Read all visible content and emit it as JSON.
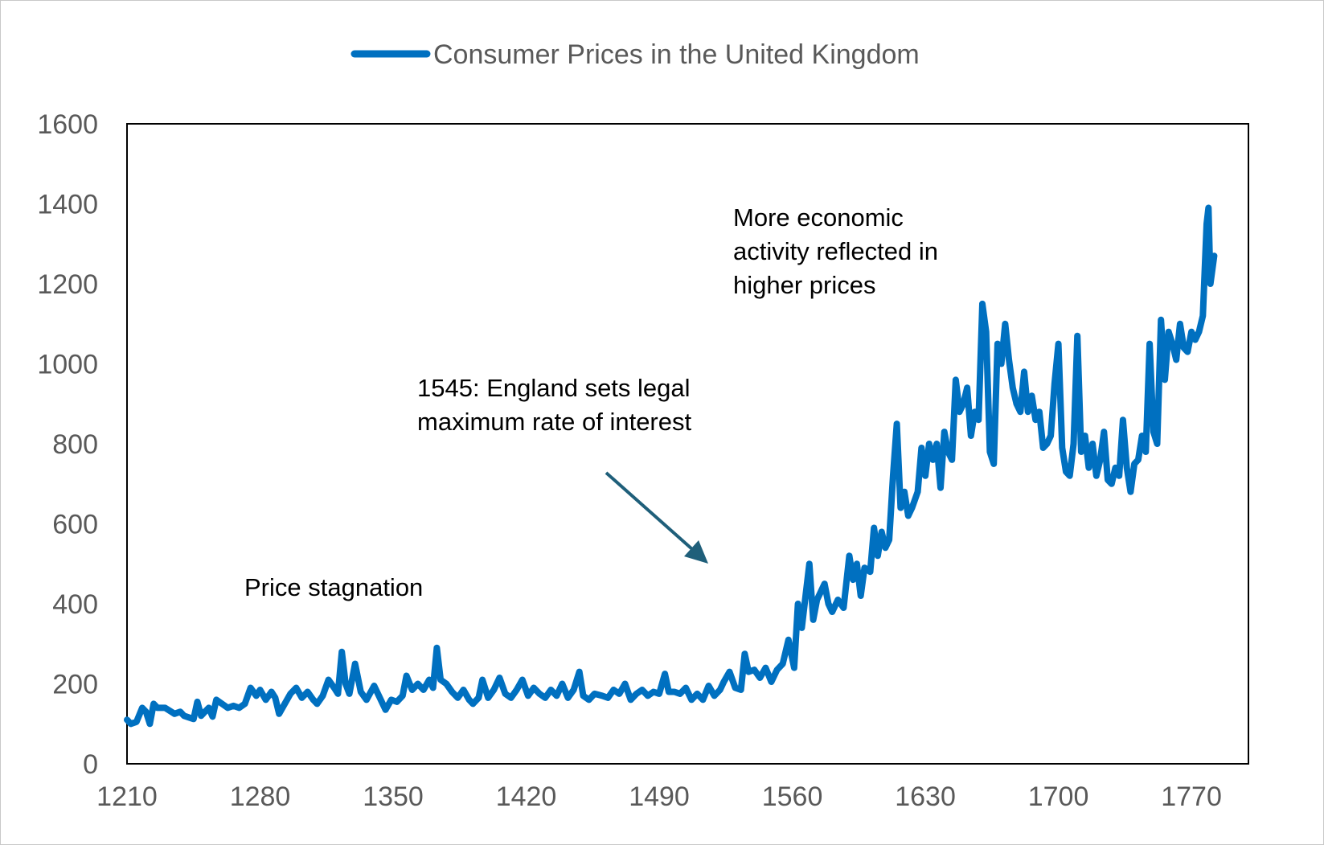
{
  "chart_data": {
    "type": "line",
    "title": "",
    "xlabel": "",
    "ylabel": "",
    "xlim": [
      1210,
      1800
    ],
    "ylim": [
      0,
      1600
    ],
    "x_ticks": [
      "1210",
      "1280",
      "1350",
      "1420",
      "1490",
      "1560",
      "1630",
      "1700",
      "1770"
    ],
    "y_ticks": [
      "0",
      "200",
      "400",
      "600",
      "800",
      "1000",
      "1200",
      "1400",
      "1600"
    ],
    "grid": false,
    "legend_position": "top-center",
    "series": [
      {
        "name": "Consumer Prices in the United Kingdom",
        "color": "#0070c0",
        "points": [
          [
            1210,
            110
          ],
          [
            1212,
            100
          ],
          [
            1215,
            105
          ],
          [
            1218,
            140
          ],
          [
            1220,
            130
          ],
          [
            1222,
            100
          ],
          [
            1224,
            150
          ],
          [
            1226,
            140
          ],
          [
            1230,
            140
          ],
          [
            1235,
            125
          ],
          [
            1238,
            130
          ],
          [
            1240,
            120
          ],
          [
            1245,
            112
          ],
          [
            1247,
            155
          ],
          [
            1249,
            120
          ],
          [
            1251,
            130
          ],
          [
            1253,
            140
          ],
          [
            1255,
            118
          ],
          [
            1257,
            160
          ],
          [
            1260,
            150
          ],
          [
            1263,
            140
          ],
          [
            1266,
            145
          ],
          [
            1269,
            140
          ],
          [
            1272,
            150
          ],
          [
            1275,
            190
          ],
          [
            1278,
            170
          ],
          [
            1280,
            185
          ],
          [
            1283,
            160
          ],
          [
            1286,
            180
          ],
          [
            1288,
            165
          ],
          [
            1290,
            125
          ],
          [
            1293,
            150
          ],
          [
            1296,
            175
          ],
          [
            1299,
            190
          ],
          [
            1302,
            165
          ],
          [
            1305,
            180
          ],
          [
            1308,
            160
          ],
          [
            1310,
            150
          ],
          [
            1313,
            170
          ],
          [
            1316,
            210
          ],
          [
            1319,
            190
          ],
          [
            1321,
            175
          ],
          [
            1323,
            280
          ],
          [
            1325,
            200
          ],
          [
            1327,
            175
          ],
          [
            1330,
            250
          ],
          [
            1333,
            180
          ],
          [
            1336,
            160
          ],
          [
            1340,
            195
          ],
          [
            1343,
            165
          ],
          [
            1346,
            135
          ],
          [
            1349,
            160
          ],
          [
            1352,
            155
          ],
          [
            1355,
            170
          ],
          [
            1357,
            220
          ],
          [
            1360,
            185
          ],
          [
            1363,
            200
          ],
          [
            1366,
            185
          ],
          [
            1369,
            210
          ],
          [
            1371,
            190
          ],
          [
            1373,
            290
          ],
          [
            1375,
            210
          ],
          [
            1378,
            200
          ],
          [
            1381,
            180
          ],
          [
            1384,
            165
          ],
          [
            1387,
            185
          ],
          [
            1390,
            160
          ],
          [
            1392,
            150
          ],
          [
            1395,
            165
          ],
          [
            1397,
            210
          ],
          [
            1400,
            165
          ],
          [
            1403,
            185
          ],
          [
            1406,
            215
          ],
          [
            1409,
            175
          ],
          [
            1412,
            165
          ],
          [
            1415,
            185
          ],
          [
            1418,
            210
          ],
          [
            1421,
            170
          ],
          [
            1424,
            190
          ],
          [
            1427,
            175
          ],
          [
            1430,
            165
          ],
          [
            1433,
            185
          ],
          [
            1436,
            170
          ],
          [
            1439,
            200
          ],
          [
            1442,
            165
          ],
          [
            1445,
            185
          ],
          [
            1448,
            230
          ],
          [
            1450,
            170
          ],
          [
            1453,
            160
          ],
          [
            1456,
            175
          ],
          [
            1460,
            170
          ],
          [
            1463,
            165
          ],
          [
            1466,
            185
          ],
          [
            1469,
            175
          ],
          [
            1472,
            200
          ],
          [
            1475,
            160
          ],
          [
            1478,
            175
          ],
          [
            1481,
            185
          ],
          [
            1484,
            170
          ],
          [
            1487,
            180
          ],
          [
            1490,
            175
          ],
          [
            1493,
            225
          ],
          [
            1495,
            180
          ],
          [
            1498,
            180
          ],
          [
            1501,
            175
          ],
          [
            1504,
            190
          ],
          [
            1507,
            160
          ],
          [
            1510,
            175
          ],
          [
            1513,
            160
          ],
          [
            1516,
            195
          ],
          [
            1519,
            170
          ],
          [
            1522,
            185
          ],
          [
            1524,
            205
          ],
          [
            1527,
            230
          ],
          [
            1530,
            190
          ],
          [
            1533,
            185
          ],
          [
            1535,
            275
          ],
          [
            1537,
            230
          ],
          [
            1540,
            235
          ],
          [
            1543,
            215
          ],
          [
            1546,
            240
          ],
          [
            1549,
            205
          ],
          [
            1552,
            235
          ],
          [
            1555,
            250
          ],
          [
            1558,
            310
          ],
          [
            1561,
            240
          ],
          [
            1563,
            400
          ],
          [
            1565,
            340
          ],
          [
            1567,
            420
          ],
          [
            1569,
            500
          ],
          [
            1571,
            360
          ],
          [
            1573,
            410
          ],
          [
            1575,
            430
          ],
          [
            1577,
            450
          ],
          [
            1579,
            400
          ],
          [
            1581,
            380
          ],
          [
            1584,
            410
          ],
          [
            1587,
            390
          ],
          [
            1590,
            520
          ],
          [
            1592,
            460
          ],
          [
            1594,
            500
          ],
          [
            1596,
            420
          ],
          [
            1598,
            490
          ],
          [
            1601,
            480
          ],
          [
            1603,
            590
          ],
          [
            1605,
            520
          ],
          [
            1607,
            580
          ],
          [
            1609,
            540
          ],
          [
            1611,
            560
          ],
          [
            1613,
            720
          ],
          [
            1615,
            850
          ],
          [
            1617,
            640
          ],
          [
            1619,
            680
          ],
          [
            1621,
            620
          ],
          [
            1623,
            640
          ],
          [
            1626,
            680
          ],
          [
            1628,
            790
          ],
          [
            1630,
            720
          ],
          [
            1632,
            800
          ],
          [
            1634,
            760
          ],
          [
            1636,
            800
          ],
          [
            1638,
            690
          ],
          [
            1640,
            830
          ],
          [
            1642,
            780
          ],
          [
            1644,
            760
          ],
          [
            1646,
            960
          ],
          [
            1648,
            880
          ],
          [
            1650,
            900
          ],
          [
            1652,
            940
          ],
          [
            1654,
            820
          ],
          [
            1656,
            880
          ],
          [
            1658,
            860
          ],
          [
            1660,
            1150
          ],
          [
            1662,
            1080
          ],
          [
            1664,
            780
          ],
          [
            1666,
            750
          ],
          [
            1668,
            1050
          ],
          [
            1670,
            1000
          ],
          [
            1672,
            1100
          ],
          [
            1674,
            1010
          ],
          [
            1676,
            940
          ],
          [
            1678,
            900
          ],
          [
            1680,
            880
          ],
          [
            1682,
            980
          ],
          [
            1684,
            880
          ],
          [
            1686,
            920
          ],
          [
            1688,
            860
          ],
          [
            1690,
            880
          ],
          [
            1692,
            790
          ],
          [
            1694,
            800
          ],
          [
            1696,
            820
          ],
          [
            1698,
            950
          ],
          [
            1700,
            1050
          ],
          [
            1702,
            790
          ],
          [
            1704,
            730
          ],
          [
            1706,
            720
          ],
          [
            1708,
            800
          ],
          [
            1710,
            1070
          ],
          [
            1712,
            780
          ],
          [
            1714,
            820
          ],
          [
            1716,
            740
          ],
          [
            1718,
            800
          ],
          [
            1720,
            720
          ],
          [
            1722,
            760
          ],
          [
            1724,
            830
          ],
          [
            1726,
            710
          ],
          [
            1728,
            700
          ],
          [
            1730,
            740
          ],
          [
            1732,
            720
          ],
          [
            1734,
            860
          ],
          [
            1736,
            740
          ],
          [
            1738,
            680
          ],
          [
            1740,
            750
          ],
          [
            1742,
            760
          ],
          [
            1744,
            820
          ],
          [
            1746,
            780
          ],
          [
            1748,
            1050
          ],
          [
            1750,
            830
          ],
          [
            1752,
            800
          ],
          [
            1754,
            1110
          ],
          [
            1756,
            960
          ],
          [
            1758,
            1080
          ],
          [
            1760,
            1050
          ],
          [
            1762,
            1010
          ],
          [
            1764,
            1100
          ],
          [
            1766,
            1040
          ],
          [
            1768,
            1030
          ],
          [
            1770,
            1080
          ],
          [
            1772,
            1060
          ],
          [
            1774,
            1080
          ],
          [
            1776,
            1120
          ],
          [
            1778,
            1350
          ],
          [
            1779,
            1390
          ],
          [
            1780,
            1200
          ],
          [
            1782,
            1270
          ]
        ]
      }
    ],
    "annotations": [
      {
        "id": "stagnation",
        "lines": [
          "Price stagnation"
        ]
      },
      {
        "id": "legal-max",
        "lines": [
          "1545: England sets legal",
          "maximum rate of interest"
        ]
      },
      {
        "id": "activity",
        "lines": [
          "More economic",
          "activity reflected in",
          "higher prices"
        ]
      }
    ],
    "arrow_color": "#1f5f7a"
  }
}
